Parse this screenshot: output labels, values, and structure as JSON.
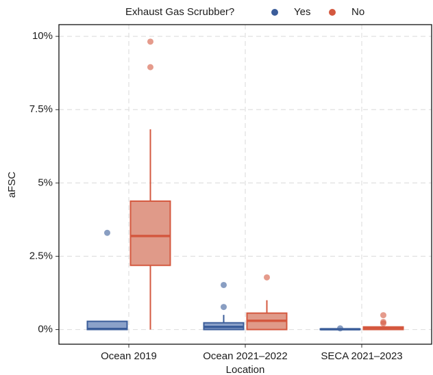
{
  "chart_data": {
    "type": "box",
    "legend_title": "Exhaust Gas Scrubber?",
    "x_label": "Location",
    "y_label": "aFSC",
    "categories": [
      "Ocean 2019",
      "Ocean 2021–2022",
      "SECA 2021–2023"
    ],
    "ylim": [
      -0.5,
      10.4
    ],
    "yticks": [
      {
        "value": 0,
        "label": "0%"
      },
      {
        "value": 2.5,
        "label": "2.5%"
      },
      {
        "value": 5,
        "label": "5%"
      },
      {
        "value": 7.5,
        "label": "7.5%"
      },
      {
        "value": 10,
        "label": "10%"
      }
    ],
    "grid": true,
    "series": [
      {
        "name": "Yes",
        "color": "#3b5d9a",
        "fill": "#8ba1c9",
        "data": [
          {
            "low": 0,
            "q1": 0,
            "median": 0.02,
            "q3": 0.28,
            "high": 0.28,
            "outliers": [
              3.3
            ]
          },
          {
            "low": 0,
            "q1": 0,
            "median": 0.09,
            "q3": 0.23,
            "high": 0.5,
            "outliers": [
              1.52,
              0.77
            ]
          },
          {
            "low": 0,
            "q1": 0,
            "median": 0.01,
            "q3": 0.02,
            "high": 0.03,
            "outliers": [
              0.04
            ]
          }
        ]
      },
      {
        "name": "No",
        "color": "#d4583f",
        "fill": "#e09a89",
        "data": [
          {
            "low": 0,
            "q1": 2.19,
            "median": 3.19,
            "q3": 4.38,
            "high": 6.83,
            "outliers": [
              8.95,
              9.82
            ]
          },
          {
            "low": 0,
            "q1": 0,
            "median": 0.3,
            "q3": 0.56,
            "high": 1.0,
            "outliers": [
              1.78
            ]
          },
          {
            "low": 0,
            "q1": 0,
            "median": 0.05,
            "q3": 0.09,
            "high": 0.1,
            "outliers": [
              0.21,
              0.26,
              0.49
            ]
          }
        ]
      }
    ]
  }
}
